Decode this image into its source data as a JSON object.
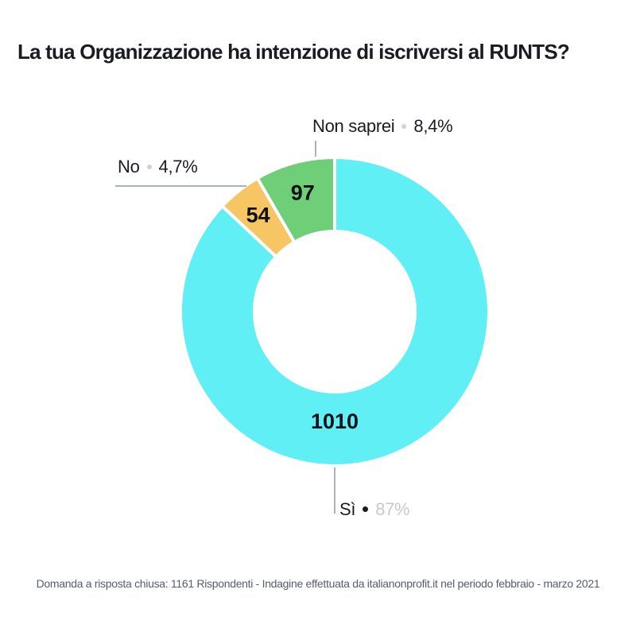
{
  "page": {
    "title": "La tua Organizzazione ha intenzione di iscriversi al RUNTS?",
    "footer": "Domanda a risposta chiusa: 1161 Rispondenti - Indagine effettuata da italianonprofit.it nel periodo febbraio - marzo 2021"
  },
  "chart_data": {
    "type": "pie",
    "subtype": "donut",
    "title": "La tua Organizzazione ha intenzione di iscriversi al RUNTS?",
    "total_respondents": 1161,
    "start_angle_deg": 0,
    "clockwise": true,
    "inner_radius_ratio": 0.52,
    "legend_position": "none",
    "value_labels": "inside slices",
    "percent_labels": "outside callouts",
    "slices": [
      {
        "label": "Sì",
        "value": 1010,
        "percent_label": "87%",
        "color": "#5fEFF4"
      },
      {
        "label": "No",
        "value": 54,
        "percent_label": "4,7%",
        "color": "#F5C663"
      },
      {
        "label": "Non saprei",
        "value": 97,
        "percent_label": "8,4%",
        "color": "#6FCF79"
      }
    ]
  }
}
